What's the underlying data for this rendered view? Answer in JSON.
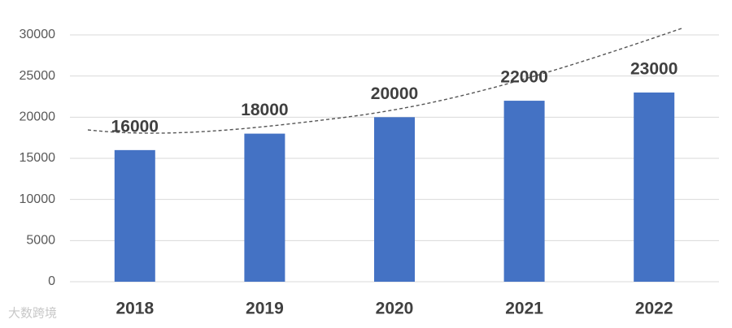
{
  "chart_data": {
    "type": "bar",
    "categories": [
      "2018",
      "2019",
      "2020",
      "2021",
      "2022"
    ],
    "values": [
      16000,
      18000,
      20000,
      22000,
      23000
    ],
    "color": "#4472c4",
    "ylim": [
      0,
      30000
    ],
    "yticks": [
      0,
      5000,
      10000,
      15000,
      20000,
      25000,
      30000
    ],
    "grid": true,
    "data_labels": true,
    "trendline": true
  },
  "watermark": "大数跨境"
}
